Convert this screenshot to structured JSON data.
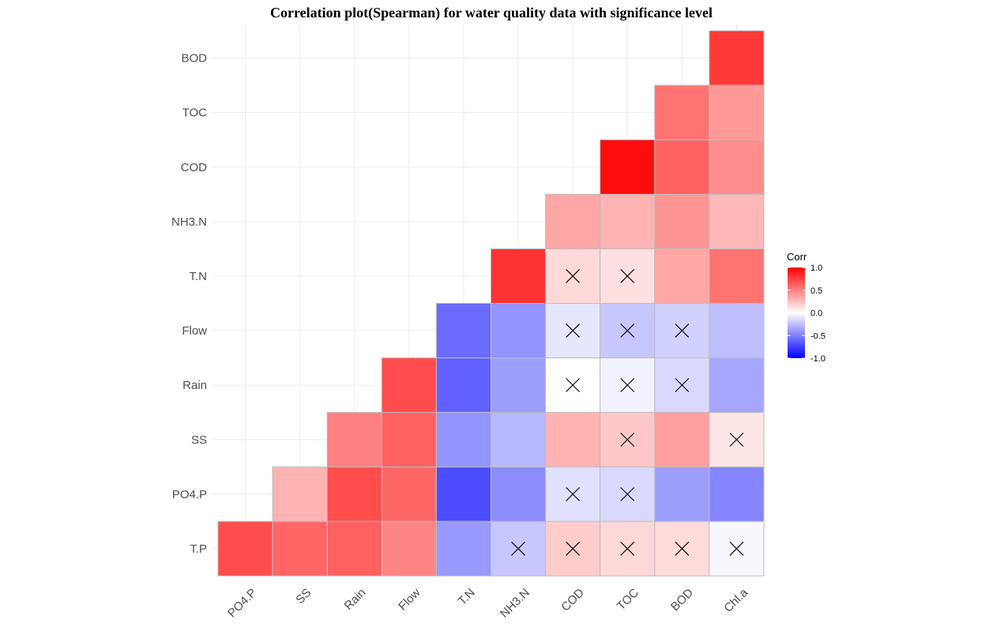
{
  "chart_data": {
    "type": "heatmap",
    "title": "Correlation plot(Spearman) for water quality data with significance level",
    "x_categories": [
      "PO4.P",
      "SS",
      "Rain",
      "Flow",
      "T.N",
      "NH3.N",
      "COD",
      "TOC",
      "BOD",
      "Chl.a"
    ],
    "y_categories": [
      "T.P",
      "PO4.P",
      "SS",
      "Rain",
      "Flow",
      "T.N",
      "NH3.N",
      "COD",
      "TOC",
      "BOD"
    ],
    "cells": [
      {
        "x": "PO4.P",
        "y": "T.P",
        "value": 0.7,
        "significant": true
      },
      {
        "x": "SS",
        "y": "T.P",
        "value": 0.6,
        "significant": true
      },
      {
        "x": "Rain",
        "y": "T.P",
        "value": 0.62,
        "significant": true
      },
      {
        "x": "Flow",
        "y": "T.P",
        "value": 0.48,
        "significant": true
      },
      {
        "x": "T.N",
        "y": "T.P",
        "value": -0.4,
        "significant": true
      },
      {
        "x": "NH3.N",
        "y": "T.P",
        "value": -0.22,
        "significant": false
      },
      {
        "x": "COD",
        "y": "T.P",
        "value": 0.2,
        "significant": false
      },
      {
        "x": "TOC",
        "y": "T.P",
        "value": 0.15,
        "significant": false
      },
      {
        "x": "BOD",
        "y": "T.P",
        "value": 0.14,
        "significant": false
      },
      {
        "x": "Chl.a",
        "y": "T.P",
        "value": -0.03,
        "significant": false
      },
      {
        "x": "SS",
        "y": "PO4.P",
        "value": 0.3,
        "significant": true
      },
      {
        "x": "Rain",
        "y": "PO4.P",
        "value": 0.7,
        "significant": true
      },
      {
        "x": "Flow",
        "y": "PO4.P",
        "value": 0.6,
        "significant": true
      },
      {
        "x": "T.N",
        "y": "PO4.P",
        "value": -0.7,
        "significant": true
      },
      {
        "x": "NH3.N",
        "y": "PO4.P",
        "value": -0.45,
        "significant": true
      },
      {
        "x": "COD",
        "y": "PO4.P",
        "value": -0.12,
        "significant": false
      },
      {
        "x": "TOC",
        "y": "PO4.P",
        "value": -0.15,
        "significant": false
      },
      {
        "x": "BOD",
        "y": "PO4.P",
        "value": -0.38,
        "significant": true
      },
      {
        "x": "Chl.a",
        "y": "PO4.P",
        "value": -0.48,
        "significant": true
      },
      {
        "x": "Rain",
        "y": "SS",
        "value": 0.5,
        "significant": true
      },
      {
        "x": "Flow",
        "y": "SS",
        "value": 0.62,
        "significant": true
      },
      {
        "x": "T.N",
        "y": "SS",
        "value": -0.42,
        "significant": true
      },
      {
        "x": "NH3.N",
        "y": "SS",
        "value": -0.28,
        "significant": true
      },
      {
        "x": "COD",
        "y": "SS",
        "value": 0.3,
        "significant": true
      },
      {
        "x": "TOC",
        "y": "SS",
        "value": 0.22,
        "significant": false
      },
      {
        "x": "BOD",
        "y": "SS",
        "value": 0.38,
        "significant": true
      },
      {
        "x": "Chl.a",
        "y": "SS",
        "value": 0.1,
        "significant": false
      },
      {
        "x": "Flow",
        "y": "Rain",
        "value": 0.7,
        "significant": true
      },
      {
        "x": "T.N",
        "y": "Rain",
        "value": -0.62,
        "significant": true
      },
      {
        "x": "NH3.N",
        "y": "Rain",
        "value": -0.38,
        "significant": true
      },
      {
        "x": "COD",
        "y": "Rain",
        "value": 0.0,
        "significant": false
      },
      {
        "x": "TOC",
        "y": "Rain",
        "value": -0.05,
        "significant": false
      },
      {
        "x": "BOD",
        "y": "Rain",
        "value": -0.15,
        "significant": false
      },
      {
        "x": "Chl.a",
        "y": "Rain",
        "value": -0.35,
        "significant": true
      },
      {
        "x": "T.N",
        "y": "Flow",
        "value": -0.58,
        "significant": true
      },
      {
        "x": "NH3.N",
        "y": "Flow",
        "value": -0.42,
        "significant": true
      },
      {
        "x": "COD",
        "y": "Flow",
        "value": -0.1,
        "significant": false
      },
      {
        "x": "TOC",
        "y": "Flow",
        "value": -0.22,
        "significant": false
      },
      {
        "x": "BOD",
        "y": "Flow",
        "value": -0.18,
        "significant": false
      },
      {
        "x": "Chl.a",
        "y": "Flow",
        "value": -0.25,
        "significant": true
      },
      {
        "x": "NH3.N",
        "y": "T.N",
        "value": 0.8,
        "significant": true
      },
      {
        "x": "COD",
        "y": "T.N",
        "value": 0.15,
        "significant": false
      },
      {
        "x": "TOC",
        "y": "T.N",
        "value": 0.12,
        "significant": false
      },
      {
        "x": "BOD",
        "y": "T.N",
        "value": 0.35,
        "significant": true
      },
      {
        "x": "Chl.a",
        "y": "T.N",
        "value": 0.55,
        "significant": true
      },
      {
        "x": "COD",
        "y": "NH3.N",
        "value": 0.35,
        "significant": true
      },
      {
        "x": "TOC",
        "y": "NH3.N",
        "value": 0.3,
        "significant": true
      },
      {
        "x": "BOD",
        "y": "NH3.N",
        "value": 0.42,
        "significant": true
      },
      {
        "x": "Chl.a",
        "y": "NH3.N",
        "value": 0.28,
        "significant": true
      },
      {
        "x": "TOC",
        "y": "COD",
        "value": 0.95,
        "significant": true
      },
      {
        "x": "BOD",
        "y": "COD",
        "value": 0.62,
        "significant": true
      },
      {
        "x": "Chl.a",
        "y": "COD",
        "value": 0.45,
        "significant": true
      },
      {
        "x": "BOD",
        "y": "TOC",
        "value": 0.55,
        "significant": true
      },
      {
        "x": "Chl.a",
        "y": "TOC",
        "value": 0.4,
        "significant": true
      },
      {
        "x": "Chl.a",
        "y": "BOD",
        "value": 0.78,
        "significant": true
      }
    ],
    "color_scale": {
      "low": "#0000ff",
      "mid": "#ffffff",
      "high": "#ff0000",
      "limits": [
        -1.0,
        1.0
      ]
    },
    "legend": {
      "title": "Corr",
      "ticks": [
        "1.0",
        "0.5",
        "0.0",
        "-0.5",
        "-1.0"
      ],
      "tick_values": [
        1.0,
        0.5,
        0.0,
        -0.5,
        -1.0
      ],
      "position": "right"
    },
    "nonsignificant_marker": "x",
    "grid": true
  }
}
